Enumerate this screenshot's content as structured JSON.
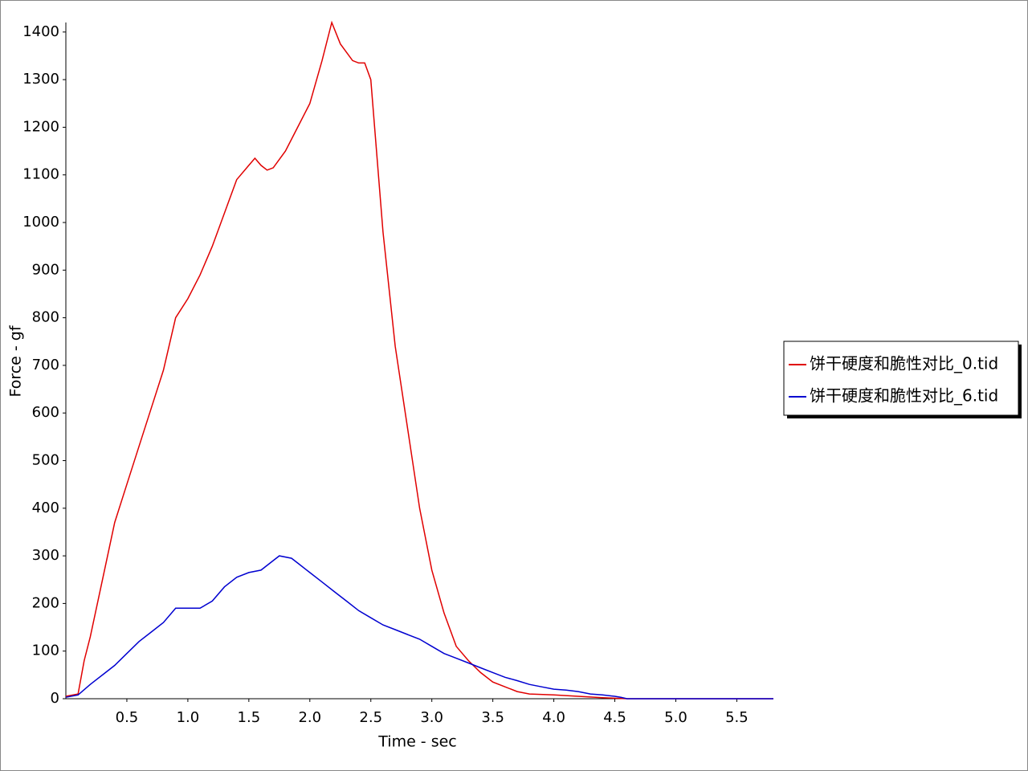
{
  "chart_data": {
    "type": "line",
    "x_label": "Time - sec",
    "y_label": "Force - gf",
    "xlim": [
      0,
      5.8
    ],
    "ylim": [
      0,
      1420
    ],
    "xticks": [
      0.5,
      {
        "value": 1,
        "label": "1.0"
      },
      1.5,
      {
        "value": 2,
        "label": "2.0"
      },
      2.5,
      {
        "value": 3,
        "label": "3.0"
      },
      3.5,
      {
        "value": 4,
        "label": "4.0"
      },
      4.5,
      {
        "value": 5,
        "label": "5.0"
      },
      5.5
    ],
    "yticks": [
      0,
      100,
      200,
      300,
      400,
      500,
      600,
      700,
      800,
      900,
      1000,
      1100,
      1200,
      1300,
      1400
    ],
    "legend": "right",
    "series": [
      {
        "name": "饼干硬度和脆性对比_0.tid",
        "color": "#e00000",
        "x": [
          0,
          0.1,
          0.15,
          0.2,
          0.3,
          0.4,
          0.5,
          0.6,
          0.7,
          0.8,
          0.9,
          1.0,
          1.1,
          1.2,
          1.3,
          1.4,
          1.5,
          1.55,
          1.6,
          1.65,
          1.7,
          1.8,
          1.9,
          2.0,
          2.1,
          2.18,
          2.25,
          2.35,
          2.4,
          2.45,
          2.5,
          2.6,
          2.7,
          2.8,
          2.9,
          3.0,
          3.1,
          3.2,
          3.3,
          3.4,
          3.5,
          3.6,
          3.7,
          3.8,
          4.0,
          4.2,
          4.4,
          4.6,
          5.8
        ],
        "values": [
          5,
          10,
          80,
          130,
          250,
          370,
          450,
          530,
          610,
          690,
          800,
          840,
          890,
          950,
          1020,
          1090,
          1120,
          1135,
          1120,
          1110,
          1115,
          1150,
          1200,
          1250,
          1340,
          1420,
          1375,
          1340,
          1335,
          1335,
          1300,
          980,
          740,
          570,
          400,
          270,
          180,
          110,
          80,
          55,
          35,
          25,
          15,
          10,
          8,
          5,
          2,
          0,
          0
        ]
      },
      {
        "name": "饼干硬度和脆性对比_6.tid",
        "color": "#0000d0",
        "x": [
          0,
          0.1,
          0.2,
          0.3,
          0.4,
          0.5,
          0.6,
          0.7,
          0.8,
          0.9,
          1.0,
          1.1,
          1.2,
          1.3,
          1.4,
          1.5,
          1.6,
          1.7,
          1.75,
          1.85,
          1.9,
          2.0,
          2.1,
          2.2,
          2.3,
          2.4,
          2.5,
          2.6,
          2.7,
          2.8,
          2.9,
          3.0,
          3.1,
          3.2,
          3.3,
          3.4,
          3.5,
          3.6,
          3.7,
          3.8,
          3.9,
          4.0,
          4.1,
          4.2,
          4.3,
          4.4,
          4.5,
          4.55,
          4.6,
          5.8
        ],
        "values": [
          3,
          8,
          30,
          50,
          70,
          95,
          120,
          140,
          160,
          190,
          190,
          190,
          205,
          235,
          255,
          265,
          270,
          290,
          300,
          295,
          285,
          265,
          245,
          225,
          205,
          185,
          170,
          155,
          145,
          135,
          125,
          110,
          95,
          85,
          75,
          65,
          55,
          45,
          38,
          30,
          25,
          20,
          18,
          15,
          10,
          8,
          5,
          3,
          0,
          0
        ]
      }
    ]
  }
}
